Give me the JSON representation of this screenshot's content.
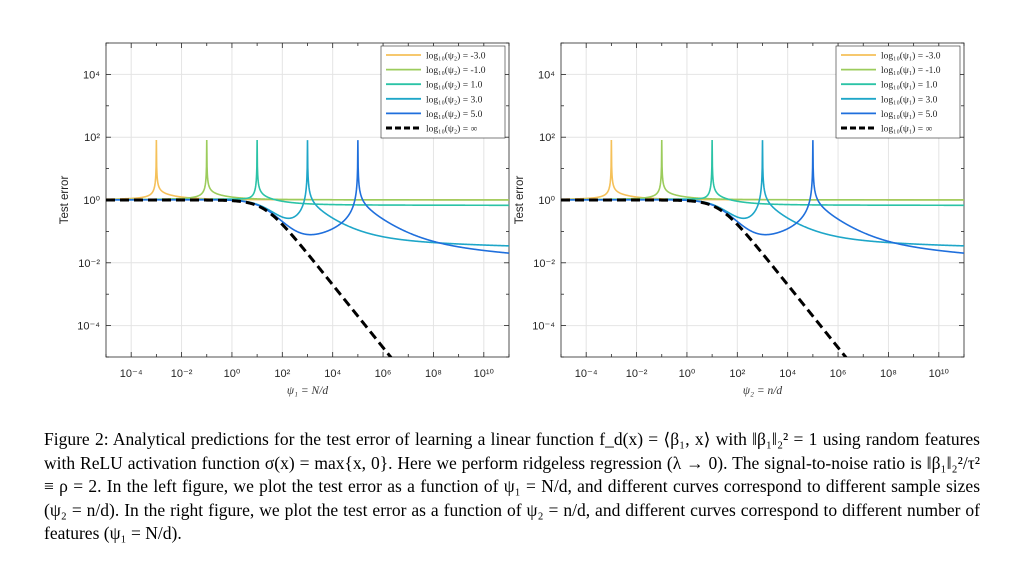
{
  "figure": {
    "caption_lines": [
      "Figure 2: Analytical predictions for the test error of learning a linear function f_d(x) = ⟨β₁, x⟩ with ‖β₁‖₂² = 1",
      "using random features with ReLU activation function σ(x) = max{x, 0}. Here we perform ridgeless regression",
      "(λ → 0). The signal-to-noise ratio is ‖β₁‖₂²/τ² ≡ ρ = 2. In the left figure, we plot the test error as a function",
      "of ψ₁ = N/d, and different curves correspond to different sample sizes (ψ₂ = n/d). In the right figure, we",
      "plot the test error as a function of ψ₂ = n/d, and different curves correspond to different number of features",
      "(ψ₁ = N/d)."
    ]
  },
  "chart_data": [
    {
      "type": "line",
      "xlabel": "ψ₁ = N/d",
      "ylabel": "Test error",
      "xscale": "log",
      "yscale": "log",
      "xlim": [
        1e-05,
        100000000000
      ],
      "ylim": [
        1e-05,
        100000
      ],
      "xticks": [
        "10⁻⁴",
        "10⁻²",
        "10⁰",
        "10²",
        "10⁴",
        "10⁶",
        "10⁸",
        "10¹⁰"
      ],
      "yticks": [
        "10⁴",
        "10²",
        "10⁰",
        "10⁻²",
        "10⁻⁴"
      ],
      "grid": true,
      "legend_position": "top-right",
      "series": [
        {
          "name": "log₁₀(ψ₂) = -3.0",
          "log10_param": -3,
          "color": "#f5c15a"
        },
        {
          "name": "log₁₀(ψ₂) = -1.0",
          "log10_param": -1,
          "color": "#9ccc5c"
        },
        {
          "name": "log₁₀(ψ₂) = 1.0",
          "log10_param": 1,
          "color": "#2bc3a6"
        },
        {
          "name": "log₁₀(ψ₂) = 3.0",
          "log10_param": 3,
          "color": "#1ea6c8"
        },
        {
          "name": "log₁₀(ψ₂) = 5.0",
          "log10_param": 5,
          "color": "#1f6fdc"
        },
        {
          "name": "log₁₀(ψ₂) = ∞",
          "log10_param": null,
          "color": "#000000",
          "dashed": true
        }
      ]
    },
    {
      "type": "line",
      "xlabel": "ψ₂ = n/d",
      "ylabel": "Test error",
      "xscale": "log",
      "yscale": "log",
      "xlim": [
        1e-05,
        100000000000
      ],
      "ylim": [
        1e-05,
        100000
      ],
      "xticks": [
        "10⁻⁴",
        "10⁻²",
        "10⁰",
        "10²",
        "10⁴",
        "10⁶",
        "10⁸",
        "10¹⁰"
      ],
      "yticks": [
        "10⁴",
        "10²",
        "10⁰",
        "10⁻²",
        "10⁻⁴"
      ],
      "grid": true,
      "legend_position": "top-right",
      "series": [
        {
          "name": "log₁₀(ψ₁) = -3.0",
          "log10_param": -3,
          "color": "#f5c15a"
        },
        {
          "name": "log₁₀(ψ₁) = -1.0",
          "log10_param": -1,
          "color": "#9ccc5c"
        },
        {
          "name": "log₁₀(ψ₁) = 1.0",
          "log10_param": 1,
          "color": "#2bc3a6"
        },
        {
          "name": "log₁₀(ψ₁) = 3.0",
          "log10_param": 3,
          "color": "#1ea6c8"
        },
        {
          "name": "log₁₀(ψ₁) = 5.0",
          "log10_param": 5,
          "color": "#1f6fdc"
        },
        {
          "name": "log₁₀(ψ₁) = ∞",
          "log10_param": null,
          "color": "#000000",
          "dashed": true
        }
      ]
    }
  ]
}
